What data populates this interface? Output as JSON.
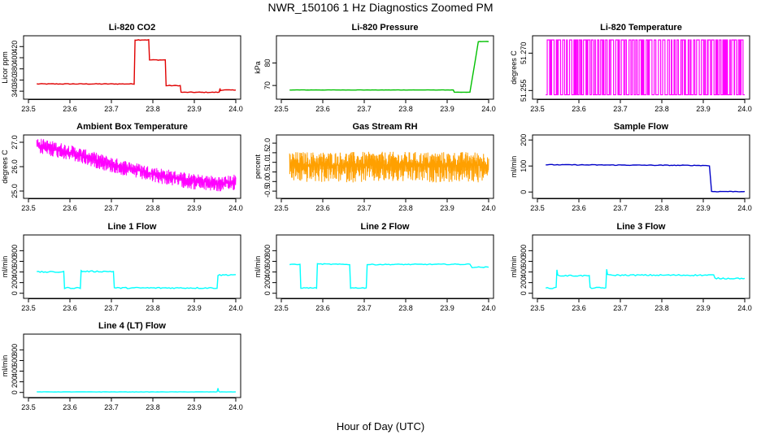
{
  "page": {
    "title": "NWR_150106  1 Hz Diagnostics Zoomed PM",
    "xlabel": "Hour of Day (UTC)"
  },
  "chart_data": [
    {
      "id": "co2",
      "type": "line",
      "title": "Li-820 CO2",
      "ylabel": "Licor ppm",
      "xlim": [
        23.5,
        24.0
      ],
      "ylim": [
        330,
        435
      ],
      "xticks": [
        23.5,
        23.6,
        23.7,
        23.8,
        23.9,
        24.0
      ],
      "xtick_labels": [
        "23.5",
        "23.6",
        "23.7",
        "23.8",
        "23.9",
        "24.0"
      ],
      "yticks": [
        340,
        360,
        380,
        400,
        420
      ],
      "ytick_labels": [
        "340",
        "360",
        "380",
        "400",
        "420"
      ],
      "color": "#e00000",
      "noise": 0.6,
      "series": [
        {
          "x": [
            23.52,
            23.755,
            23.757,
            23.79,
            23.792,
            23.83,
            23.832,
            23.866,
            23.868,
            23.96,
            23.962,
            23.963,
            23.965,
            24.0
          ],
          "y": [
            353,
            353,
            432,
            432,
            396,
            396,
            350,
            350,
            338,
            338,
            345,
            341,
            342,
            342
          ]
        }
      ]
    },
    {
      "id": "pressure",
      "type": "line",
      "title": "Li-820 Pressure",
      "ylabel": "kPa",
      "xlim": [
        23.5,
        24.0
      ],
      "ylim": [
        65,
        91
      ],
      "xticks": [
        23.5,
        23.6,
        23.7,
        23.8,
        23.9,
        24.0
      ],
      "xtick_labels": [
        "23.5",
        "23.6",
        "23.7",
        "23.8",
        "23.9",
        "24.0"
      ],
      "yticks": [
        70,
        80
      ],
      "ytick_labels": [
        "70",
        "80"
      ],
      "color": "#00c000",
      "noise": 0.05,
      "series": [
        {
          "x": [
            23.52,
            23.915,
            23.917,
            23.955,
            23.965,
            23.975,
            24.0
          ],
          "y": [
            68,
            68,
            67,
            67,
            78,
            89.5,
            89.5
          ]
        }
      ]
    },
    {
      "id": "licor-temp",
      "type": "line",
      "title": "Li-820 Temperature",
      "ylabel": "degrees C",
      "xlim": [
        23.5,
        24.0
      ],
      "ylim": [
        51.2525,
        51.276
      ],
      "xticks": [
        23.5,
        23.6,
        23.7,
        23.8,
        23.9,
        24.0
      ],
      "xtick_labels": [
        "23.5",
        "23.6",
        "23.7",
        "23.8",
        "23.9",
        "24.0"
      ],
      "yticks": [
        51.255,
        51.27
      ],
      "ytick_labels": [
        "51.255",
        "51.270"
      ],
      "color": "#ff00ff",
      "style": "toggle",
      "levels": [
        51.2533,
        51.2753
      ],
      "xrange": [
        23.52,
        24.0
      ]
    },
    {
      "id": "box-temp",
      "type": "line",
      "title": "Ambient Box Temperature",
      "ylabel": "degrees C",
      "xlim": [
        23.5,
        24.0
      ],
      "ylim": [
        24.8,
        27.2
      ],
      "xticks": [
        23.5,
        23.6,
        23.7,
        23.8,
        23.9,
        24.0
      ],
      "xtick_labels": [
        "23.5",
        "23.6",
        "23.7",
        "23.8",
        "23.9",
        "24.0"
      ],
      "yticks": [
        25.0,
        26.0,
        27.0
      ],
      "ytick_labels": [
        "25.0",
        "26.0",
        "27.0"
      ],
      "color": "#ff00ff",
      "style": "band",
      "series": [
        {
          "x": [
            23.52,
            23.6,
            23.7,
            23.8,
            23.9,
            23.97,
            24.0
          ],
          "y": [
            26.9,
            26.6,
            26.1,
            25.7,
            25.4,
            25.3,
            25.4
          ]
        }
      ],
      "band_lo": 0.35,
      "band_hi": 0.3
    },
    {
      "id": "rh",
      "type": "line",
      "title": "Gas Stream RH",
      "ylabel": "percent",
      "xlim": [
        23.5,
        24.0
      ],
      "ylim": [
        -0.75,
        2.3
      ],
      "xticks": [
        23.5,
        23.6,
        23.7,
        23.8,
        23.9,
        24.0
      ],
      "xtick_labels": [
        "23.5",
        "23.6",
        "23.7",
        "23.8",
        "23.9",
        "24.0"
      ],
      "yticks": [
        -0.5,
        0.0,
        0.5,
        1.0,
        1.5,
        2.0
      ],
      "ytick_labels": [
        "-0.5",
        "0.0",
        "0.5",
        "1.0",
        "1.5",
        "2.0"
      ],
      "color": "#ffa000",
      "style": "band",
      "series": [
        {
          "x": [
            23.52,
            24.0
          ],
          "y": [
            0.85,
            0.85
          ]
        }
      ],
      "band_lo": 0.9,
      "band_hi": 0.7
    },
    {
      "id": "sample-flow",
      "type": "line",
      "title": "Sample Flow",
      "ylabel": "ml/min",
      "xlim": [
        23.5,
        24.0
      ],
      "ylim": [
        -15,
        210
      ],
      "xticks": [
        23.5,
        23.6,
        23.7,
        23.8,
        23.9,
        24.0
      ],
      "xtick_labels": [
        "23.5",
        "23.6",
        "23.7",
        "23.8",
        "23.9",
        "24.0"
      ],
      "yticks": [
        0,
        100,
        200
      ],
      "ytick_labels": [
        "0",
        "100",
        "200"
      ],
      "color": "#0000c8",
      "noise": 1.2,
      "series": [
        {
          "x": [
            23.52,
            23.91,
            23.915,
            23.92,
            24.0
          ],
          "y": [
            105,
            102,
            100,
            2,
            2
          ]
        }
      ]
    },
    {
      "id": "line1-flow",
      "type": "line",
      "title": "Line 1 Flow",
      "ylabel": "ml/min",
      "xlim": [
        23.5,
        24.0
      ],
      "ylim": [
        -50,
        1050
      ],
      "xticks": [
        23.5,
        23.6,
        23.7,
        23.8,
        23.9,
        24.0
      ],
      "xtick_labels": [
        "23.5",
        "23.6",
        "23.7",
        "23.8",
        "23.9",
        "24.0"
      ],
      "yticks": [
        0,
        200,
        400,
        600,
        800
      ],
      "ytick_labels": [
        "0",
        "200",
        "400",
        "600",
        "800"
      ],
      "color": "#00ffff",
      "noise": 12,
      "series": [
        {
          "x": [
            23.52,
            23.585,
            23.587,
            23.625,
            23.627,
            23.63,
            23.705,
            23.707,
            23.955,
            23.957,
            24.0
          ],
          "y": [
            400,
            400,
            100,
            100,
            420,
            410,
            410,
            100,
            100,
            340,
            350
          ]
        }
      ]
    },
    {
      "id": "line2-flow",
      "type": "line",
      "title": "Line 2 Flow",
      "ylabel": "ml/min",
      "xlim": [
        23.5,
        24.0
      ],
      "ylim": [
        -50,
        1050
      ],
      "xticks": [
        23.5,
        23.6,
        23.7,
        23.8,
        23.9,
        24.0
      ],
      "xtick_labels": [
        "23.5",
        "23.6",
        "23.7",
        "23.8",
        "23.9",
        "24.0"
      ],
      "yticks": [
        0,
        200,
        400,
        600,
        800
      ],
      "ytick_labels": [
        "0",
        "200",
        "400",
        "600",
        "800"
      ],
      "color": "#00ffff",
      "noise": 8,
      "series": [
        {
          "x": [
            23.52,
            23.545,
            23.547,
            23.585,
            23.587,
            23.665,
            23.667,
            23.705,
            23.707,
            23.955,
            23.96,
            24.0
          ],
          "y": [
            540,
            540,
            100,
            100,
            550,
            540,
            100,
            100,
            540,
            545,
            490,
            490
          ]
        }
      ]
    },
    {
      "id": "line3-flow",
      "type": "line",
      "title": "Line 3 Flow",
      "ylabel": "ml/min",
      "xlim": [
        23.5,
        24.0
      ],
      "ylim": [
        -50,
        1050
      ],
      "xticks": [
        23.5,
        23.6,
        23.7,
        23.8,
        23.9,
        24.0
      ],
      "xtick_labels": [
        "23.5",
        "23.6",
        "23.7",
        "23.8",
        "23.9",
        "24.0"
      ],
      "yticks": [
        0,
        200,
        400,
        600,
        800
      ],
      "ytick_labels": [
        "0",
        "200",
        "400",
        "600",
        "800"
      ],
      "color": "#00ffff",
      "noise": 12,
      "series": [
        {
          "x": [
            23.52,
            23.545,
            23.547,
            23.549,
            23.552,
            23.625,
            23.627,
            23.665,
            23.667,
            23.669,
            23.672,
            23.925,
            23.928,
            24.0
          ],
          "y": [
            100,
            100,
            450,
            340,
            330,
            330,
            100,
            100,
            460,
            350,
            340,
            340,
            280,
            280
          ]
        }
      ]
    },
    {
      "id": "line4-flow",
      "type": "line",
      "title": "Line 4 (LT) Flow",
      "ylabel": "ml/min",
      "xlim": [
        23.5,
        24.0
      ],
      "ylim": [
        -50,
        1050
      ],
      "xticks": [
        23.5,
        23.6,
        23.7,
        23.8,
        23.9,
        24.0
      ],
      "xtick_labels": [
        "23.5",
        "23.6",
        "23.7",
        "23.8",
        "23.9",
        "24.0"
      ],
      "yticks": [
        0,
        200,
        400,
        600,
        800
      ],
      "ytick_labels": [
        "0",
        "200",
        "400",
        "600",
        "800"
      ],
      "color": "#00ffff",
      "noise": 3,
      "series": [
        {
          "x": [
            23.52,
            23.955,
            23.957,
            23.959,
            23.962,
            24.0
          ],
          "y": [
            10,
            10,
            80,
            20,
            10,
            10
          ]
        }
      ]
    }
  ]
}
